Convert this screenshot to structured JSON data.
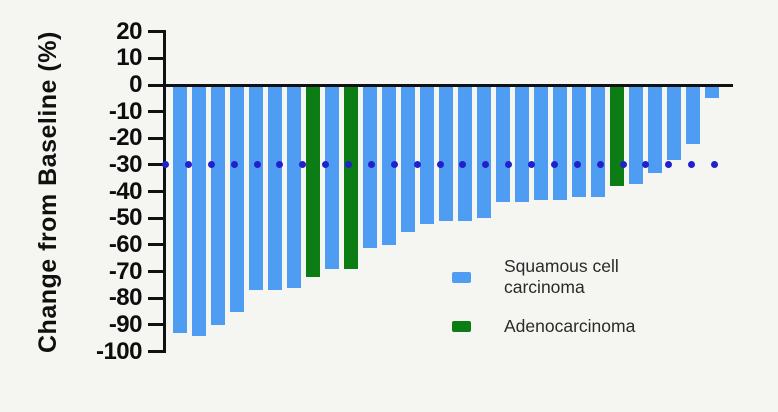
{
  "colors": {
    "background": "#f5f6f2",
    "axis": "#111111",
    "squamous": "#4f9df2",
    "adeno": "#0c7d14",
    "reference_dot": "#2121cc"
  },
  "y_axis": {
    "label": "Change from Baseline (%)",
    "tick_labels": [
      "20",
      "10",
      "0",
      "-10",
      "-20",
      "-30",
      "-40",
      "-50",
      "-60",
      "-70",
      "-80",
      "-90",
      "-100"
    ]
  },
  "legend": {
    "items": [
      {
        "key": "squamous",
        "color": "#4f9df2",
        "lines": [
          "Squamous cell",
          "carcinoma"
        ]
      },
      {
        "key": "adeno",
        "color": "#0c7d14",
        "lines": [
          "Adenocarcinoma"
        ]
      }
    ]
  },
  "chart_data": {
    "type": "bar",
    "subtype": "waterfall",
    "title": "",
    "xlabel": "",
    "ylabel": "Change from Baseline (%)",
    "ylim": [
      -100,
      20
    ],
    "grid": false,
    "legend_position": "inside-lower-right",
    "y_ticks": [
      20,
      10,
      0,
      -10,
      -20,
      -30,
      -40,
      -50,
      -60,
      -70,
      -80,
      -90,
      -100
    ],
    "reference_line": {
      "y": -30,
      "style": "dotted",
      "color": "#2121cc"
    },
    "series": [
      {
        "name": "Squamous cell carcinoma",
        "color": "#4f9df2"
      },
      {
        "name": "Adenocarcinoma",
        "color": "#0c7d14"
      }
    ],
    "bars": [
      {
        "value": -93,
        "group": "squamous"
      },
      {
        "value": -94,
        "group": "squamous"
      },
      {
        "value": -90,
        "group": "squamous"
      },
      {
        "value": -85,
        "group": "squamous"
      },
      {
        "value": -77,
        "group": "squamous"
      },
      {
        "value": -77,
        "group": "squamous"
      },
      {
        "value": -76,
        "group": "squamous"
      },
      {
        "value": -72,
        "group": "adeno"
      },
      {
        "value": -69,
        "group": "squamous"
      },
      {
        "value": -69,
        "group": "adeno"
      },
      {
        "value": -61,
        "group": "squamous"
      },
      {
        "value": -60,
        "group": "squamous"
      },
      {
        "value": -55,
        "group": "squamous"
      },
      {
        "value": -52,
        "group": "squamous"
      },
      {
        "value": -51,
        "group": "squamous"
      },
      {
        "value": -51,
        "group": "squamous"
      },
      {
        "value": -50,
        "group": "squamous"
      },
      {
        "value": -44,
        "group": "squamous"
      },
      {
        "value": -44,
        "group": "squamous"
      },
      {
        "value": -43,
        "group": "squamous"
      },
      {
        "value": -43,
        "group": "squamous"
      },
      {
        "value": -42,
        "group": "squamous"
      },
      {
        "value": -42,
        "group": "squamous"
      },
      {
        "value": -38,
        "group": "adeno"
      },
      {
        "value": -37,
        "group": "squamous"
      },
      {
        "value": -33,
        "group": "squamous"
      },
      {
        "value": -28,
        "group": "squamous"
      },
      {
        "value": -22,
        "group": "squamous"
      },
      {
        "value": -5,
        "group": "squamous"
      }
    ]
  }
}
